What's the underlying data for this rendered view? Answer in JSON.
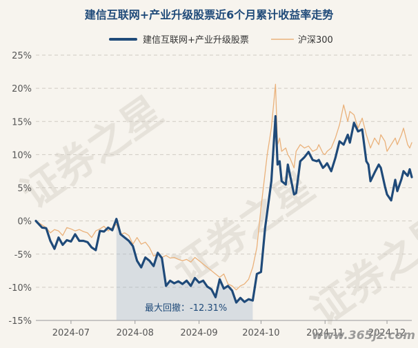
{
  "chart_data": {
    "type": "line",
    "title": "建信互联网+产业升级股票近6个月累计收益率走势",
    "y_unit": "%",
    "ylim": [
      -15,
      25
    ],
    "yticks": [
      -15,
      -10,
      -5,
      0,
      5,
      10,
      15,
      20,
      25
    ],
    "ytick_labels": [
      "-15%",
      "-10%",
      "-5%",
      "0%",
      "5%",
      "10%",
      "15%",
      "20%",
      "25%"
    ],
    "x_range": [
      "2024-06-14",
      "2024-12-13"
    ],
    "x_ticks": [
      {
        "date": "2024-07-01",
        "label": "2024-07"
      },
      {
        "date": "2024-08-01",
        "label": "2024-08"
      },
      {
        "date": "2024-09-01",
        "label": "2024-09"
      },
      {
        "date": "2024-10-01",
        "label": "2024-10"
      },
      {
        "date": "2024-11-01",
        "label": "2024-11"
      },
      {
        "date": "2024-12-01",
        "label": "2024-12"
      }
    ],
    "grid": "horizontal-dashed",
    "legend_position": "top-center",
    "series": [
      {
        "name": "建信互联网+产业升级股票",
        "color": "#1f4a79",
        "points": [
          [
            "2024-06-14",
            0.0
          ],
          [
            "2024-06-17",
            -1.0
          ],
          [
            "2024-06-19",
            -1.1
          ],
          [
            "2024-06-21",
            -3.0
          ],
          [
            "2024-06-23",
            -4.2
          ],
          [
            "2024-06-25",
            -2.5
          ],
          [
            "2024-06-27",
            -3.6
          ],
          [
            "2024-06-29",
            -2.9
          ],
          [
            "2024-07-01",
            -3.1
          ],
          [
            "2024-07-03",
            -2.0
          ],
          [
            "2024-07-05",
            -3.0
          ],
          [
            "2024-07-07",
            -3.0
          ],
          [
            "2024-07-09",
            -3.2
          ],
          [
            "2024-07-11",
            -4.0
          ],
          [
            "2024-07-13",
            -4.4
          ],
          [
            "2024-07-15",
            -1.5
          ],
          [
            "2024-07-17",
            -1.6
          ],
          [
            "2024-07-19",
            -1.0
          ],
          [
            "2024-07-21",
            -1.4
          ],
          [
            "2024-07-23",
            0.3
          ],
          [
            "2024-07-25",
            -2.0
          ],
          [
            "2024-07-27",
            -2.5
          ],
          [
            "2024-07-29",
            -3.0
          ],
          [
            "2024-07-31",
            -3.8
          ],
          [
            "2024-08-02",
            -6.0
          ],
          [
            "2024-08-04",
            -7.0
          ],
          [
            "2024-08-06",
            -5.5
          ],
          [
            "2024-08-08",
            -6.0
          ],
          [
            "2024-08-10",
            -6.8
          ],
          [
            "2024-08-12",
            -4.8
          ],
          [
            "2024-08-14",
            -5.6
          ],
          [
            "2024-08-16",
            -9.8
          ],
          [
            "2024-08-18",
            -9.0
          ],
          [
            "2024-08-20",
            -9.4
          ],
          [
            "2024-08-22",
            -9.1
          ],
          [
            "2024-08-24",
            -9.5
          ],
          [
            "2024-08-26",
            -9.0
          ],
          [
            "2024-08-28",
            -9.8
          ],
          [
            "2024-08-30",
            -8.6
          ],
          [
            "2024-09-01",
            -9.3
          ],
          [
            "2024-09-03",
            -9.0
          ],
          [
            "2024-09-05",
            -9.9
          ],
          [
            "2024-09-07",
            -10.3
          ],
          [
            "2024-09-09",
            -11.5
          ],
          [
            "2024-09-11",
            -8.8
          ],
          [
            "2024-09-13",
            -10.2
          ],
          [
            "2024-09-15",
            -9.8
          ],
          [
            "2024-09-17",
            -10.5
          ],
          [
            "2024-09-19",
            -12.3
          ],
          [
            "2024-09-21",
            -11.6
          ],
          [
            "2024-09-23",
            -12.2
          ],
          [
            "2024-09-25",
            -11.8
          ],
          [
            "2024-09-27",
            -12.0
          ],
          [
            "2024-09-29",
            -8.0
          ],
          [
            "2024-10-01",
            -7.7
          ],
          [
            "2024-10-03",
            -1.0
          ],
          [
            "2024-10-06",
            6.0
          ],
          [
            "2024-10-08",
            15.8
          ],
          [
            "2024-10-09",
            8.5
          ],
          [
            "2024-10-10",
            9.0
          ],
          [
            "2024-10-11",
            6.0
          ],
          [
            "2024-10-13",
            5.5
          ],
          [
            "2024-10-14",
            8.5
          ],
          [
            "2024-10-15",
            7.0
          ],
          [
            "2024-10-17",
            4.0
          ],
          [
            "2024-10-18",
            4.2
          ],
          [
            "2024-10-20",
            9.0
          ],
          [
            "2024-10-22",
            9.6
          ],
          [
            "2024-10-24",
            10.4
          ],
          [
            "2024-10-26",
            9.2
          ],
          [
            "2024-10-28",
            9.0
          ],
          [
            "2024-10-29",
            9.2
          ],
          [
            "2024-10-31",
            8.0
          ],
          [
            "2024-11-01",
            8.3
          ],
          [
            "2024-11-02",
            8.7
          ],
          [
            "2024-11-04",
            7.5
          ],
          [
            "2024-11-06",
            9.5
          ],
          [
            "2024-11-08",
            12.0
          ],
          [
            "2024-11-10",
            11.5
          ],
          [
            "2024-11-12",
            13.0
          ],
          [
            "2024-11-13",
            11.8
          ],
          [
            "2024-11-15",
            14.8
          ],
          [
            "2024-11-17",
            13.5
          ],
          [
            "2024-11-19",
            13.8
          ],
          [
            "2024-11-21",
            9.0
          ],
          [
            "2024-11-22",
            8.5
          ],
          [
            "2024-11-23",
            6.0
          ],
          [
            "2024-11-25",
            7.3
          ],
          [
            "2024-11-27",
            8.5
          ],
          [
            "2024-11-28",
            8.0
          ],
          [
            "2024-11-30",
            5.2
          ],
          [
            "2024-12-01",
            4.0
          ],
          [
            "2024-12-03",
            3.1
          ],
          [
            "2024-12-05",
            6.2
          ],
          [
            "2024-12-06",
            4.5
          ],
          [
            "2024-12-08",
            6.3
          ],
          [
            "2024-12-09",
            7.5
          ],
          [
            "2024-12-11",
            6.8
          ],
          [
            "2024-12-12",
            7.8
          ],
          [
            "2024-12-13",
            6.6
          ]
        ]
      },
      {
        "name": "沪深300",
        "color": "#eab17a",
        "points": [
          [
            "2024-06-14",
            0.0
          ],
          [
            "2024-06-17",
            -0.6
          ],
          [
            "2024-06-19",
            -1.0
          ],
          [
            "2024-06-21",
            -1.8
          ],
          [
            "2024-06-23",
            -1.3
          ],
          [
            "2024-06-25",
            -1.5
          ],
          [
            "2024-06-27",
            -2.2
          ],
          [
            "2024-06-29",
            -1.0
          ],
          [
            "2024-07-01",
            -1.2
          ],
          [
            "2024-07-03",
            -1.5
          ],
          [
            "2024-07-05",
            -1.3
          ],
          [
            "2024-07-07",
            -1.6
          ],
          [
            "2024-07-09",
            -1.8
          ],
          [
            "2024-07-11",
            -2.5
          ],
          [
            "2024-07-13",
            -1.5
          ],
          [
            "2024-07-15",
            -1.2
          ],
          [
            "2024-07-17",
            -0.8
          ],
          [
            "2024-07-19",
            -1.5
          ],
          [
            "2024-07-21",
            -1.0
          ],
          [
            "2024-07-23",
            -0.5
          ],
          [
            "2024-07-25",
            -2.0
          ],
          [
            "2024-07-27",
            -1.8
          ],
          [
            "2024-07-29",
            -2.2
          ],
          [
            "2024-07-31",
            -3.5
          ],
          [
            "2024-08-02",
            -2.5
          ],
          [
            "2024-08-04",
            -3.5
          ],
          [
            "2024-08-06",
            -3.2
          ],
          [
            "2024-08-08",
            -4.0
          ],
          [
            "2024-08-10",
            -5.3
          ],
          [
            "2024-08-12",
            -5.0
          ],
          [
            "2024-08-14",
            -5.5
          ],
          [
            "2024-08-16",
            -5.2
          ],
          [
            "2024-08-18",
            -5.6
          ],
          [
            "2024-08-20",
            -5.5
          ],
          [
            "2024-08-22",
            -5.8
          ],
          [
            "2024-08-24",
            -6.0
          ],
          [
            "2024-08-26",
            -5.8
          ],
          [
            "2024-08-28",
            -6.2
          ],
          [
            "2024-08-30",
            -5.5
          ],
          [
            "2024-09-01",
            -6.0
          ],
          [
            "2024-09-03",
            -6.5
          ],
          [
            "2024-09-05",
            -7.0
          ],
          [
            "2024-09-07",
            -7.5
          ],
          [
            "2024-09-09",
            -8.0
          ],
          [
            "2024-09-11",
            -8.5
          ],
          [
            "2024-09-13",
            -8.0
          ],
          [
            "2024-09-15",
            -9.5
          ],
          [
            "2024-09-17",
            -9.8
          ],
          [
            "2024-09-19",
            -10.4
          ],
          [
            "2024-09-21",
            -9.8
          ],
          [
            "2024-09-23",
            -9.5
          ],
          [
            "2024-09-25",
            -8.8
          ],
          [
            "2024-09-27",
            -7.0
          ],
          [
            "2024-09-29",
            -4.0
          ],
          [
            "2024-10-01",
            2.0
          ],
          [
            "2024-10-04",
            10.0
          ],
          [
            "2024-10-06",
            14.0
          ],
          [
            "2024-10-08",
            20.6
          ],
          [
            "2024-10-09",
            11.5
          ],
          [
            "2024-10-10",
            12.5
          ],
          [
            "2024-10-11",
            10.5
          ],
          [
            "2024-10-13",
            11.0
          ],
          [
            "2024-10-14",
            10.0
          ],
          [
            "2024-10-15",
            9.5
          ],
          [
            "2024-10-17",
            8.0
          ],
          [
            "2024-10-18",
            10.5
          ],
          [
            "2024-10-20",
            11.5
          ],
          [
            "2024-10-22",
            11.0
          ],
          [
            "2024-10-24",
            11.3
          ],
          [
            "2024-10-26",
            10.5
          ],
          [
            "2024-10-28",
            10.8
          ],
          [
            "2024-10-29",
            11.5
          ],
          [
            "2024-10-31",
            10.2
          ],
          [
            "2024-11-01",
            10.0
          ],
          [
            "2024-11-02",
            10.5
          ],
          [
            "2024-11-04",
            11.0
          ],
          [
            "2024-11-06",
            12.5
          ],
          [
            "2024-11-08",
            14.5
          ],
          [
            "2024-11-10",
            17.5
          ],
          [
            "2024-11-12",
            15.0
          ],
          [
            "2024-11-13",
            16.5
          ],
          [
            "2024-11-15",
            16.0
          ],
          [
            "2024-11-17",
            14.0
          ],
          [
            "2024-11-19",
            15.5
          ],
          [
            "2024-11-21",
            13.0
          ],
          [
            "2024-11-22",
            12.0
          ],
          [
            "2024-11-23",
            11.0
          ],
          [
            "2024-11-25",
            12.5
          ],
          [
            "2024-11-27",
            11.5
          ],
          [
            "2024-11-28",
            13.0
          ],
          [
            "2024-11-30",
            12.0
          ],
          [
            "2024-12-01",
            10.5
          ],
          [
            "2024-12-03",
            11.5
          ],
          [
            "2024-12-05",
            12.5
          ],
          [
            "2024-12-06",
            11.5
          ],
          [
            "2024-12-08",
            13.0
          ],
          [
            "2024-12-09",
            14.0
          ],
          [
            "2024-12-11",
            11.5
          ],
          [
            "2024-12-12",
            11.0
          ],
          [
            "2024-12-13",
            11.8
          ]
        ]
      }
    ],
    "drawdown": {
      "label": "最大回撤：-12.31%",
      "start": "2024-07-23",
      "end": "2024-09-27",
      "value": -12.31
    }
  },
  "watermark": {
    "main": "证券之星",
    "corner": "www.365jz.com"
  }
}
